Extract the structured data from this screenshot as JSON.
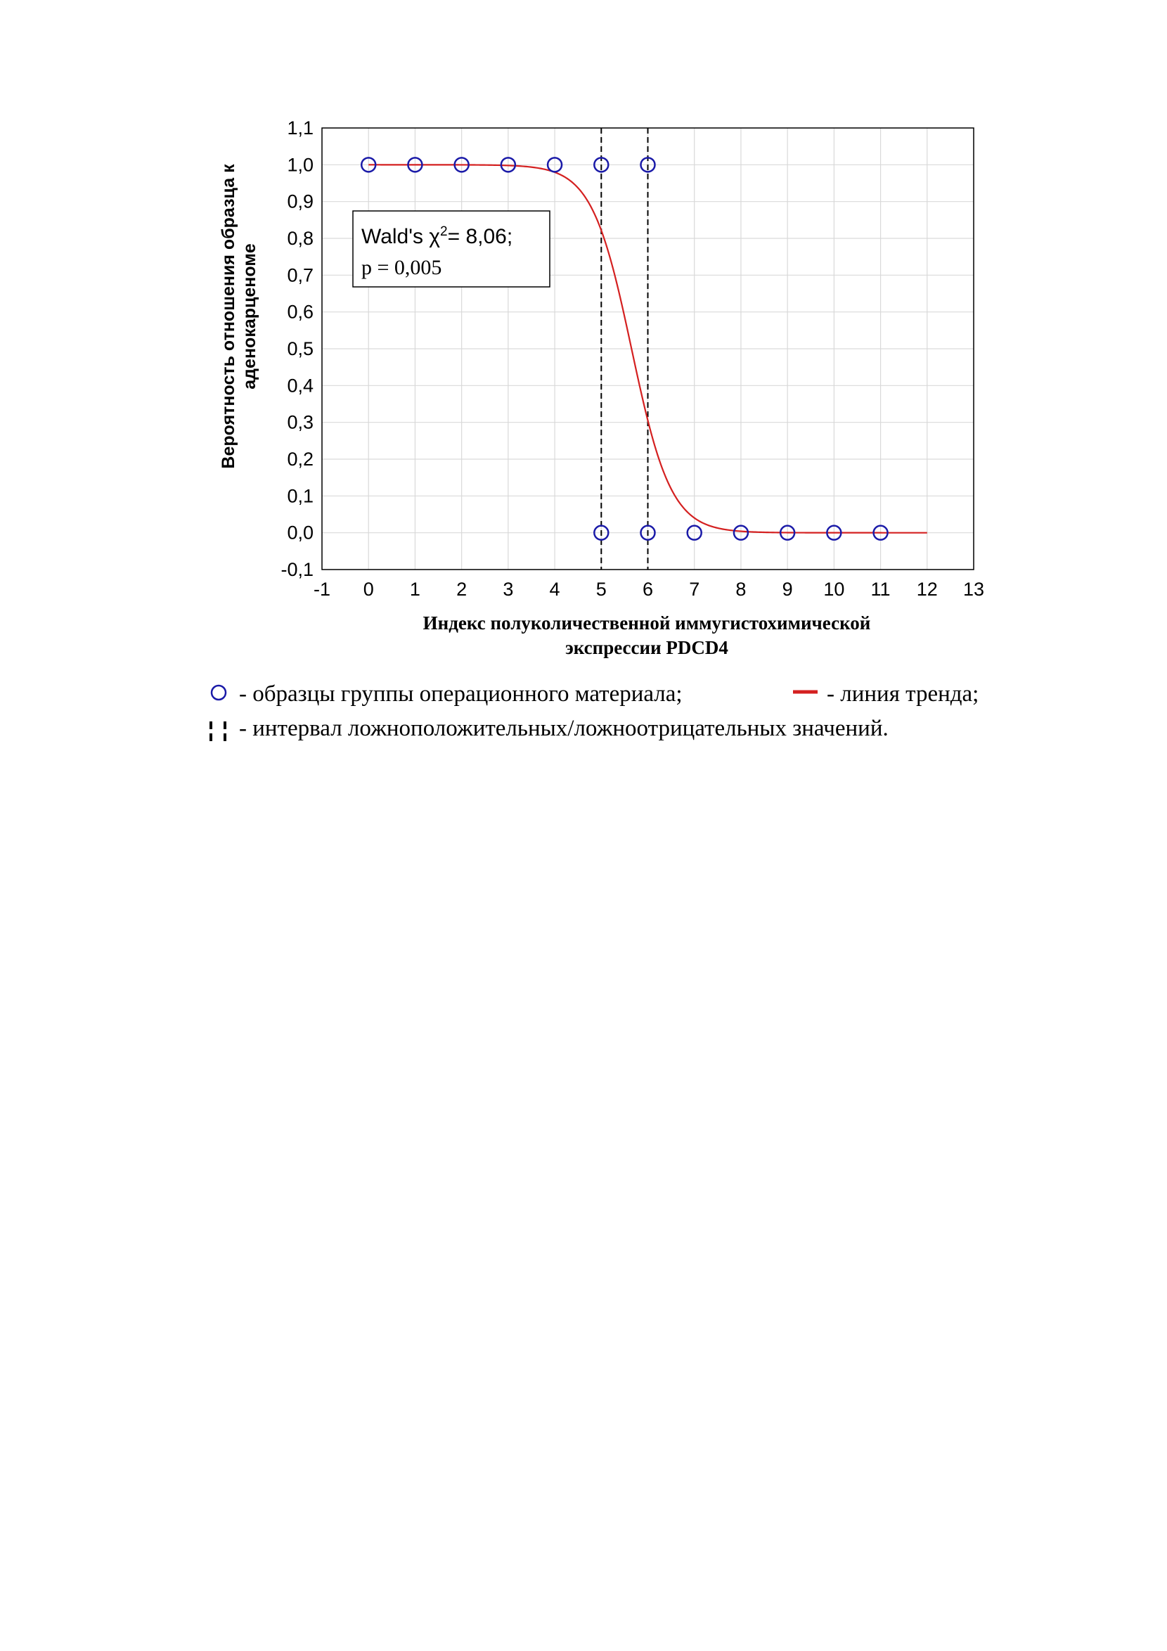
{
  "chart_data": {
    "type": "scatter",
    "ylabel_line1": "Вероятность отношения образца к",
    "ylabel_line2": "аденокарценоме",
    "xlabel_line1": "Индекс полуколичественной иммугистохимической",
    "xlabel_line2": "экспрессии PDCD4",
    "xlim": [
      -1,
      13
    ],
    "ylim": [
      -0.1,
      1.1
    ],
    "x_ticks": [
      "-1",
      "0",
      "1",
      "2",
      "3",
      "4",
      "5",
      "6",
      "7",
      "8",
      "9",
      "10",
      "11",
      "12",
      "13"
    ],
    "y_ticks": [
      "-0,1",
      "0,0",
      "0,1",
      "0,2",
      "0,3",
      "0,4",
      "0,5",
      "0,6",
      "0,7",
      "0,8",
      "0,9",
      "1,0",
      "1,1"
    ],
    "grid": true,
    "points": [
      {
        "x": 0,
        "y": 1
      },
      {
        "x": 1,
        "y": 1
      },
      {
        "x": 2,
        "y": 1
      },
      {
        "x": 3,
        "y": 1
      },
      {
        "x": 4,
        "y": 1
      },
      {
        "x": 5,
        "y": 1
      },
      {
        "x": 6,
        "y": 1
      },
      {
        "x": 5,
        "y": 0
      },
      {
        "x": 6,
        "y": 0
      },
      {
        "x": 7,
        "y": 0
      },
      {
        "x": 8,
        "y": 0
      },
      {
        "x": 9,
        "y": 0
      },
      {
        "x": 10,
        "y": 0
      },
      {
        "x": 11,
        "y": 0
      }
    ],
    "trend": {
      "range": [
        0,
        12
      ],
      "midpoint": 5.65,
      "slope": 2.35
    },
    "interval": [
      5,
      6
    ],
    "annotation": {
      "line1_prefix": "Wald's χ",
      "line1_sup": "2",
      "line1_suffix": "= 8,06;",
      "line2": "p = 0,005"
    },
    "colors": {
      "points": "#1a1aa8",
      "trend": "#d42020",
      "grid": "#d9d9d9",
      "interval": "#000000"
    }
  },
  "legend": {
    "markers_text": "- образцы группы операционного материала;",
    "trend_text": "- линия тренда;",
    "interval_text": "- интервал ложноположительных/ложноотрицательных значений."
  }
}
